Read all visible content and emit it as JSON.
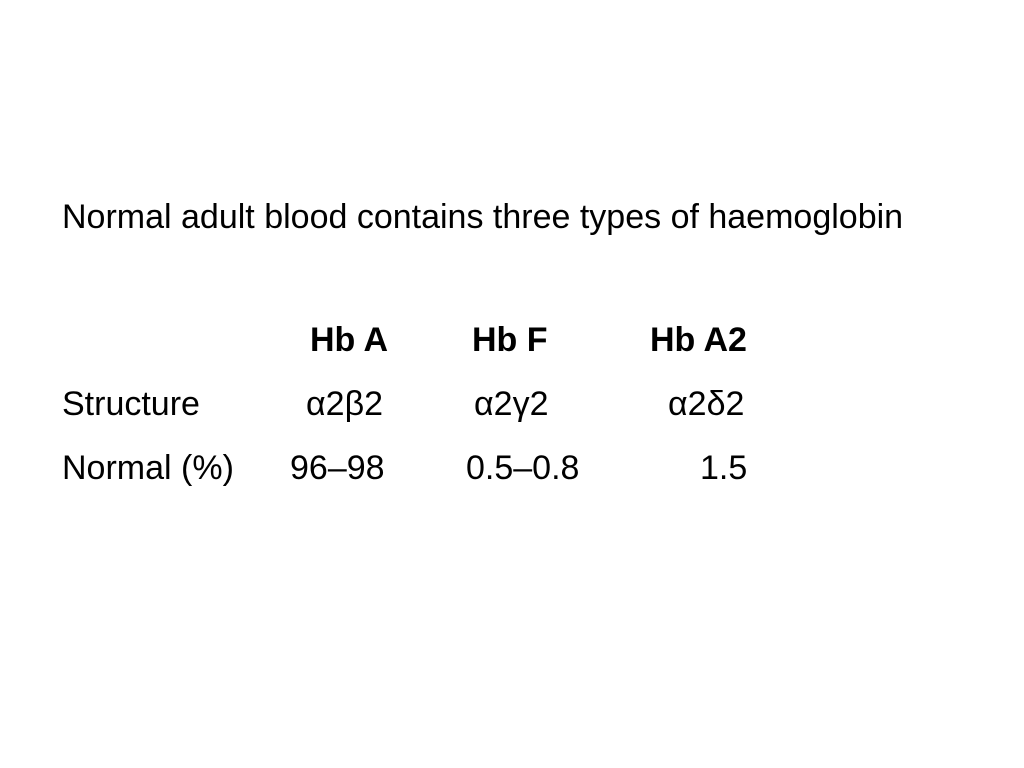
{
  "intro_text": "Normal adult blood contains three types of haemoglobin",
  "table": {
    "headers": [
      "Hb A",
      "Hb F",
      "Hb A2"
    ],
    "rows": [
      {
        "label": "Structure",
        "values": [
          "α2β2",
          "α2γ2",
          "α2δ2"
        ]
      },
      {
        "label": "Normal (%)",
        "values": [
          "96–98",
          "0.5–0.8",
          "1.5"
        ]
      }
    ]
  }
}
